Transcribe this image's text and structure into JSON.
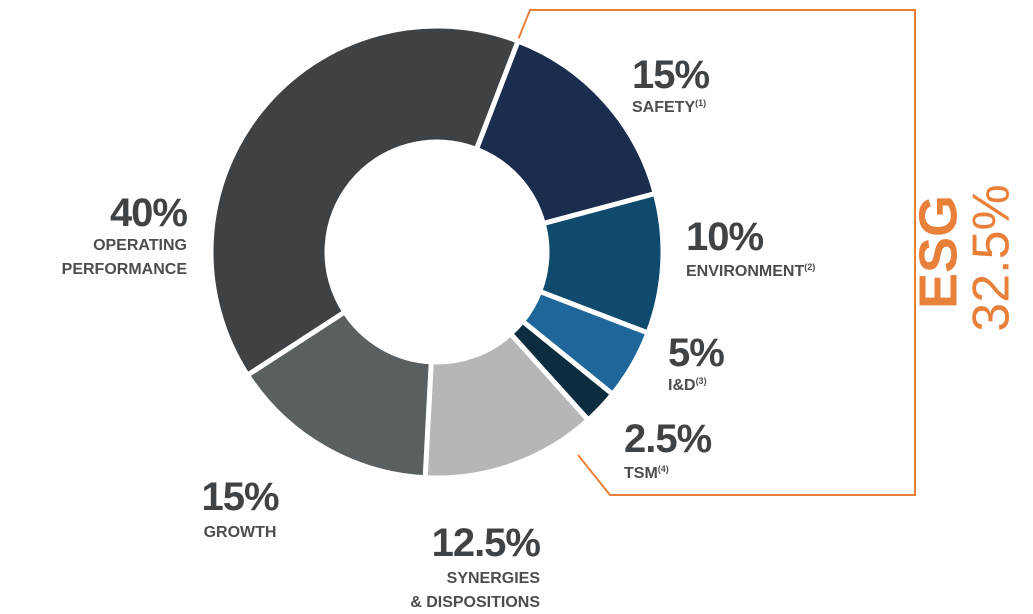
{
  "chart_data": {
    "type": "donut",
    "categories": [
      "SAFETY",
      "ENVIRONMENT",
      "I&D",
      "TSM",
      "SYNERGIES\n& DISPOSITIONS",
      "GROWTH",
      "OPERATING\nPERFORMANCE"
    ],
    "footnotes": [
      "(1)",
      "(2)",
      "(3)",
      "(4)",
      null,
      null,
      null
    ],
    "values": [
      15,
      10,
      5,
      2.5,
      12.5,
      15,
      40
    ],
    "value_labels": [
      "15%",
      "10%",
      "5%",
      "2.5%",
      "12.5%",
      "15%",
      "40%"
    ],
    "colors": [
      "#1b2d4f",
      "#104a6d",
      "#1f679a",
      "#0c2d3f",
      "#b4b6b7",
      "#5a5f62",
      "#3e4245"
    ],
    "annotations": [
      {
        "text": "ESG",
        "color": "#e8803a"
      },
      {
        "text": "32.5%",
        "color": "#e8803a"
      }
    ]
  }
}
